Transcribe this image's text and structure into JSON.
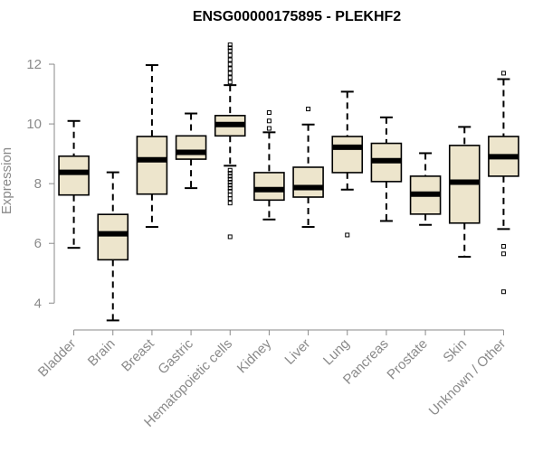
{
  "chart_data": {
    "type": "boxplot",
    "title": "ENSG00000175895 - PLEKHF2",
    "ylabel": "Expression",
    "xlabel": "",
    "ylim": [
      3.1,
      13.0
    ],
    "yticks": [
      4,
      6,
      8,
      10,
      12
    ],
    "box_fill": "#ede5cc",
    "categories": [
      "Bladder",
      "Brain",
      "Breast",
      "Gastric",
      "Hematopoietic cells",
      "Kidney",
      "Liver",
      "Lung",
      "Pancreas",
      "Prostate",
      "Skin",
      "Unknown / Other"
    ],
    "boxes": [
      {
        "whisker_low": 5.85,
        "q1": 7.62,
        "median": 8.38,
        "q3": 8.92,
        "whisker_high": 10.1,
        "outliers": []
      },
      {
        "whisker_low": 3.42,
        "q1": 5.45,
        "median": 6.32,
        "q3": 6.97,
        "whisker_high": 8.38,
        "outliers": []
      },
      {
        "whisker_low": 6.55,
        "q1": 7.65,
        "median": 8.8,
        "q3": 9.58,
        "whisker_high": 11.97,
        "outliers": []
      },
      {
        "whisker_low": 7.85,
        "q1": 8.82,
        "median": 9.05,
        "q3": 9.6,
        "whisker_high": 10.35,
        "outliers": []
      },
      {
        "whisker_low": 8.6,
        "q1": 9.6,
        "median": 9.98,
        "q3": 10.28,
        "whisker_high": 11.3,
        "outliers": [
          6.22,
          7.35,
          7.5,
          7.62,
          7.75,
          7.85,
          7.95,
          8.05,
          8.15,
          8.25,
          8.35,
          8.45,
          11.4,
          11.55,
          11.7,
          11.85,
          12.0,
          12.15,
          12.3,
          12.45,
          12.55,
          12.65
        ]
      },
      {
        "whisker_low": 6.8,
        "q1": 7.45,
        "median": 7.8,
        "q3": 8.37,
        "whisker_high": 9.72,
        "outliers": [
          9.85,
          10.1,
          10.38
        ]
      },
      {
        "whisker_low": 6.55,
        "q1": 7.55,
        "median": 7.87,
        "q3": 8.55,
        "whisker_high": 9.98,
        "outliers": [
          10.5
        ]
      },
      {
        "whisker_low": 7.8,
        "q1": 8.37,
        "median": 9.22,
        "q3": 9.58,
        "whisker_high": 11.08,
        "outliers": [
          6.28
        ]
      },
      {
        "whisker_low": 6.75,
        "q1": 8.07,
        "median": 8.77,
        "q3": 9.35,
        "whisker_high": 10.22,
        "outliers": []
      },
      {
        "whisker_low": 6.62,
        "q1": 6.98,
        "median": 7.65,
        "q3": 8.25,
        "whisker_high": 9.02,
        "outliers": []
      },
      {
        "whisker_low": 5.55,
        "q1": 6.68,
        "median": 8.05,
        "q3": 9.28,
        "whisker_high": 9.9,
        "outliers": []
      },
      {
        "whisker_low": 6.48,
        "q1": 8.25,
        "median": 8.9,
        "q3": 9.58,
        "whisker_high": 11.5,
        "outliers": [
          4.38,
          5.65,
          5.9,
          11.7
        ]
      }
    ]
  }
}
